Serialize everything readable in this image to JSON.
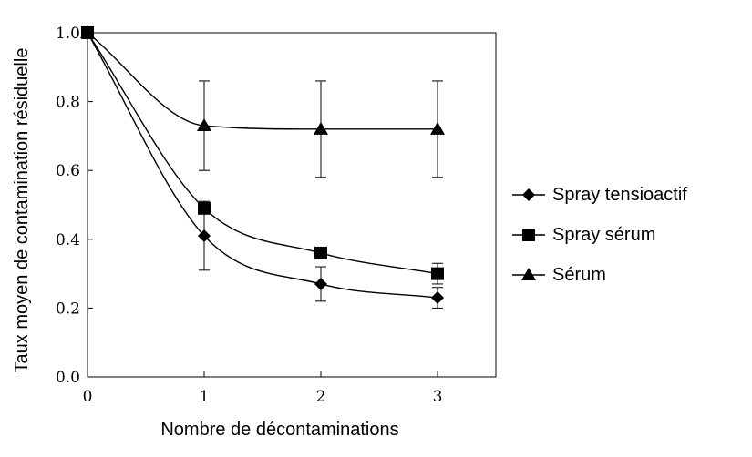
{
  "chart_data": {
    "type": "line",
    "xlabel": "Nombre de décontaminations",
    "ylabel": "Taux moyen de contamination résiduelle",
    "xlim": [
      0,
      3.5
    ],
    "ylim": [
      0,
      1.0
    ],
    "x_ticks": [
      0,
      1,
      2,
      3
    ],
    "x_tick_labels": [
      "0",
      "1",
      "2",
      "3"
    ],
    "y_ticks": [
      0,
      0.2,
      0.4,
      0.6,
      0.8,
      1.0
    ],
    "y_tick_labels": [
      "0.0",
      "0.2",
      "0.4",
      "0.6",
      "0.8",
      "1.0"
    ],
    "grid": false,
    "legend_position": "right",
    "x": [
      0,
      1,
      2,
      3
    ],
    "series": [
      {
        "name": "Spray tensioactif",
        "marker": "diamond",
        "values": [
          1.0,
          0.41,
          0.27,
          0.23
        ],
        "error": [
          0,
          0.1,
          0.05,
          0.03
        ]
      },
      {
        "name": "Spray sérum",
        "marker": "square",
        "values": [
          1.0,
          0.49,
          0.36,
          0.3
        ],
        "error": [
          0,
          0.0,
          0.0,
          0.03
        ]
      },
      {
        "name": "Sérum",
        "marker": "triangle",
        "values": [
          1.0,
          0.73,
          0.72,
          0.72
        ],
        "error": [
          0,
          0.13,
          0.14,
          0.14
        ]
      }
    ]
  }
}
